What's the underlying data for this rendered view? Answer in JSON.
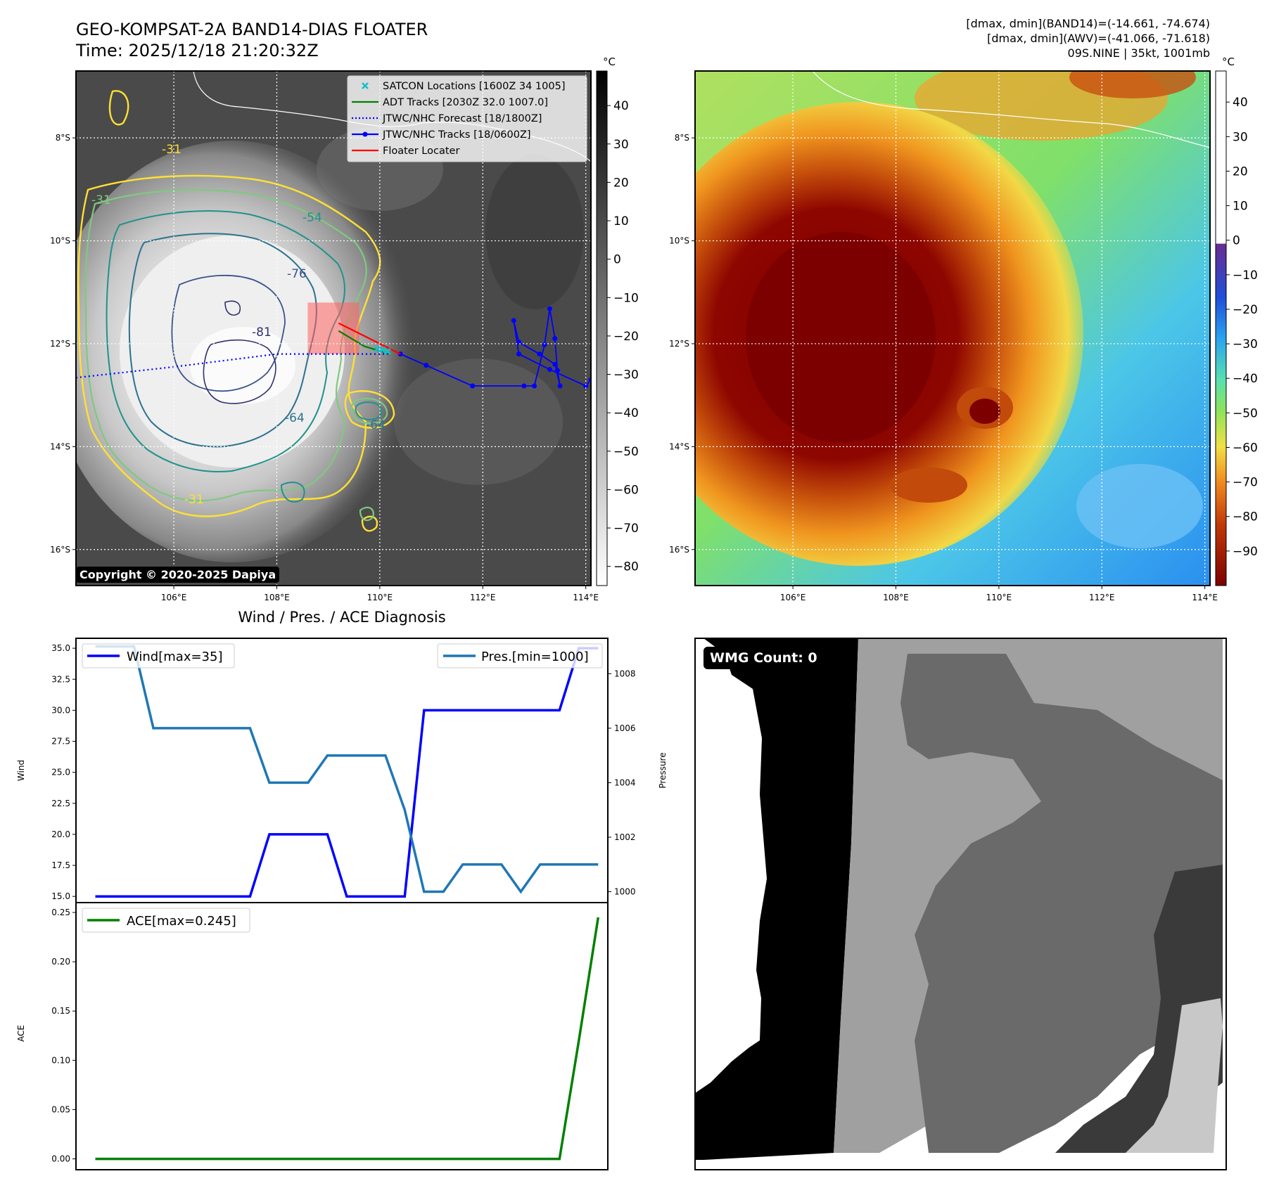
{
  "header": {
    "title_line1": "GEO-KOMPSAT-2A BAND14-DIAS FLOATER",
    "title_line2": "Time: 2025/12/18 21:20:32Z",
    "info_line1": "[dmax, dmin](BAND14)=(-14.661, -74.674)",
    "info_line2": "[dmax, dmin](AWV)=(-41.066, -71.618)",
    "info_line3": "09S.NINE | 35kt, 1001mb"
  },
  "copyright": "Copyright © 2020-2025 Dapiya",
  "wmg_label": "WMG Count: 0",
  "colors": {
    "satcon": "#17becf",
    "adt": "#008000",
    "jtwc_forecast": "#0000ff",
    "jtwc_tracks": "#0000ff",
    "floater": "#ff0000",
    "wind": "#0000ff",
    "pressure": "#1f77b4",
    "ace": "#008000",
    "contour_m31": "#ffe033",
    "contour_m41": "#7fc97f",
    "contour_m54": "#21918c",
    "contour_m64": "#2c728e",
    "contour_m76": "#3b528b",
    "contour_m81": "#31306e"
  },
  "chart_data": [
    {
      "type": "heatmap",
      "name": "band14-ir",
      "colorbar_unit": "°C",
      "colorbar_ticks": [
        40,
        30,
        20,
        10,
        0,
        -10,
        -20,
        -30,
        -40,
        -50,
        -60,
        -70,
        -80
      ],
      "colorbar_range": [
        -85,
        49
      ],
      "lon_ticks": [
        "106°E",
        "108°E",
        "110°E",
        "112°E",
        "114°E"
      ],
      "lat_ticks": [
        "8°S",
        "10°S",
        "12°S",
        "14°S",
        "16°S"
      ],
      "lon_range": [
        104.1,
        114.1
      ],
      "lat_range": [
        -6.7,
        -16.7
      ],
      "contour_labels": [
        "-31",
        "-31",
        "-31",
        "-54",
        "-64",
        "-64",
        "-76",
        "-81"
      ],
      "legend": [
        {
          "name": "SATCON Locations [1600Z 34 1005]",
          "style": "marker-x"
        },
        {
          "name": "ADT Tracks [2030Z 32.0 1007.0]",
          "style": "line"
        },
        {
          "name": "JTWC/NHC Forecast [18/1800Z]",
          "style": "dotted"
        },
        {
          "name": "JTWC/NHC Tracks [18/0600Z]",
          "style": "line-marker"
        },
        {
          "name": "Floater Locater",
          "style": "line"
        }
      ],
      "legend_placement": "top-right",
      "grid": true,
      "jtwc_forecast": [
        [
          104.1,
          -12.66
        ],
        [
          106.0,
          -12.45
        ],
        [
          108.0,
          -12.2
        ],
        [
          110.2,
          -12.2
        ]
      ],
      "jtwc_tracks": [
        [
          110.4,
          -12.2
        ],
        [
          110.9,
          -12.42
        ],
        [
          111.8,
          -12.82
        ],
        [
          112.8,
          -12.82
        ],
        [
          113.0,
          -12.82
        ],
        [
          113.2,
          -12.02
        ],
        [
          113.3,
          -11.32
        ],
        [
          113.4,
          -11.9
        ],
        [
          113.45,
          -12.52
        ],
        [
          113.5,
          -12.82
        ],
        [
          113.4,
          -12.4
        ],
        [
          113.1,
          -12.2
        ],
        [
          112.7,
          -11.97
        ],
        [
          112.6,
          -11.55
        ],
        [
          112.7,
          -12.2
        ],
        [
          113.3,
          -12.5
        ],
        [
          114.0,
          -12.82
        ],
        [
          114.1,
          -12.7
        ]
      ],
      "adt_tracks": [
        [
          109.2,
          -11.75
        ],
        [
          109.7,
          -12.05
        ],
        [
          110.2,
          -12.2
        ]
      ],
      "floater_line": [
        [
          109.2,
          -11.6
        ],
        [
          110.4,
          -12.2
        ]
      ],
      "floater_box": [
        [
          108.6,
          -11.2
        ],
        [
          109.6,
          -12.2
        ]
      ],
      "satcon_points": [
        [
          109.95,
          -12.1
        ],
        [
          110.05,
          -12.12
        ],
        [
          110.15,
          -12.15
        ]
      ]
    },
    {
      "type": "heatmap",
      "name": "awv-color",
      "colorbar_unit": "°C",
      "colorbar_ticks": [
        40,
        30,
        20,
        10,
        0,
        -10,
        -20,
        -30,
        -40,
        -50,
        -60,
        -70,
        -80,
        -90
      ],
      "colorbar_range": [
        -100,
        49
      ],
      "lon_ticks": [
        "106°E",
        "108°E",
        "110°E",
        "112°E",
        "114°E"
      ],
      "lat_ticks": [
        "8°S",
        "10°S",
        "12°S",
        "14°S",
        "16°S"
      ],
      "grid": true
    },
    {
      "type": "line",
      "name": "wind-pressure",
      "title": "Wind / Pres. / ACE Diagnosis",
      "ylabel_left": "Wind",
      "ylabel_right": "Pressure",
      "y_left_range": [
        14.5,
        35.8
      ],
      "y_left_ticks": [
        "15.0",
        "17.5",
        "20.0",
        "22.5",
        "25.0",
        "27.5",
        "30.0",
        "32.5",
        "35.0"
      ],
      "y_right_range": [
        999.6,
        1009.3
      ],
      "y_right_ticks": [
        "1000",
        "1002",
        "1004",
        "1006",
        "1008"
      ],
      "x_range": [
        0,
        27.5
      ],
      "series": [
        {
          "name": "Wind[max=35]",
          "axis": "left",
          "x": [
            1,
            9,
            10,
            13,
            14,
            17,
            18,
            19,
            20,
            21,
            22,
            23,
            24,
            25,
            26,
            27
          ],
          "values": [
            15,
            15,
            20,
            20,
            15,
            15,
            30,
            30,
            30,
            30,
            30,
            30,
            30,
            30,
            35,
            35
          ]
        },
        {
          "name": "Pres.[min=1000]",
          "axis": "right",
          "x": [
            1,
            3,
            4,
            5,
            6,
            7,
            9,
            10,
            11,
            12,
            13,
            14,
            15,
            16,
            17,
            18,
            19,
            20,
            21,
            22,
            23,
            24,
            25,
            26,
            27
          ],
          "values": [
            1009,
            1009,
            1006,
            1006,
            1006,
            1006,
            1006,
            1004,
            1004,
            1004,
            1005,
            1005,
            1005,
            1005,
            1003,
            1000,
            1000,
            1001,
            1001,
            1001,
            1000,
            1001,
            1001,
            1001,
            1001
          ]
        }
      ]
    },
    {
      "type": "line",
      "name": "ace",
      "ylabel": "ACE",
      "y_range": [
        -0.011,
        0.26
      ],
      "y_ticks": [
        "0.00",
        "0.05",
        "0.10",
        "0.15",
        "0.20",
        "0.25"
      ],
      "x_range": [
        0,
        27.5
      ],
      "series": [
        {
          "name": "ACE[max=0.245]",
          "x": [
            1,
            24,
            25,
            26,
            27
          ],
          "values": [
            0,
            0,
            0,
            0.12,
            0.245
          ]
        }
      ]
    },
    {
      "type": "heatmap",
      "name": "wmg-grid"
    }
  ]
}
